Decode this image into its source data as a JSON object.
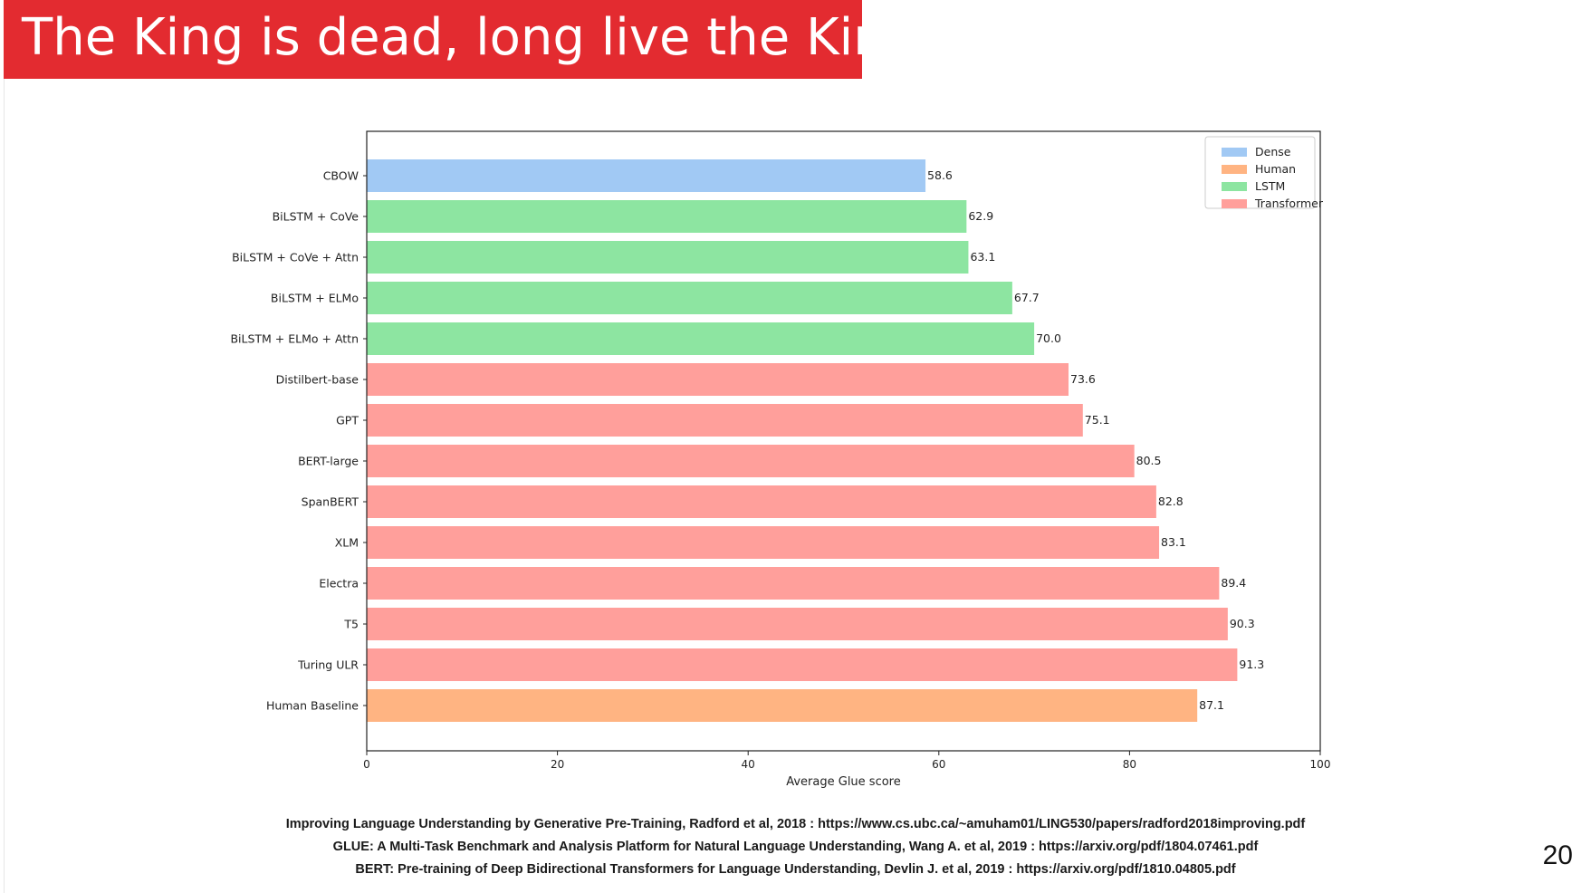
{
  "slide": {
    "title": "The King is dead, long live the King!",
    "page_number": "20",
    "references": [
      "Improving Language Understanding by Generative Pre-Training, Radford et al, 2018 : https://www.cs.ubc.ca/~amuham01/LING530/papers/radford2018improving.pdf",
      "GLUE: A Multi-Task Benchmark and Analysis Platform for Natural Language Understanding, Wang A. et al, 2019 : https://arxiv.org/pdf/1804.07461.pdf",
      "BERT: Pre-training of Deep Bidirectional Transformers for Language Understanding, Devlin J. et al, 2019 : https://arxiv.org/pdf/1810.04805.pdf"
    ],
    "colors": {
      "title_band": "#e32b30",
      "title_text": "#ffffff"
    }
  },
  "chart_data": {
    "type": "bar",
    "orientation": "horizontal",
    "title": "",
    "xlabel": "Average Glue score",
    "ylabel": "",
    "xlim": [
      0,
      100
    ],
    "xticks": [
      0,
      20,
      40,
      60,
      80,
      100
    ],
    "grid": false,
    "legend_position": "top-right",
    "legend": [
      {
        "name": "Dense",
        "color": "#a1c9f4"
      },
      {
        "name": "Human",
        "color": "#ffb482"
      },
      {
        "name": "LSTM",
        "color": "#8de5a1"
      },
      {
        "name": "Transformer",
        "color": "#ff9f9b"
      }
    ],
    "bars": [
      {
        "label": "CBOW",
        "value": 58.6,
        "value_label": "58.6",
        "group": "Dense"
      },
      {
        "label": "BiLSTM + CoVe",
        "value": 62.9,
        "value_label": "62.9",
        "group": "LSTM"
      },
      {
        "label": "BiLSTM + CoVe + Attn",
        "value": 63.1,
        "value_label": "63.1",
        "group": "LSTM"
      },
      {
        "label": "BiLSTM + ELMo",
        "value": 67.7,
        "value_label": "67.7",
        "group": "LSTM"
      },
      {
        "label": "BiLSTM + ELMo + Attn",
        "value": 70.0,
        "value_label": "70.0",
        "group": "LSTM"
      },
      {
        "label": "Distilbert-base",
        "value": 73.6,
        "value_label": "73.6",
        "group": "Transformer"
      },
      {
        "label": "GPT",
        "value": 75.1,
        "value_label": "75.1",
        "group": "Transformer"
      },
      {
        "label": "BERT-large",
        "value": 80.5,
        "value_label": "80.5",
        "group": "Transformer"
      },
      {
        "label": "SpanBERT",
        "value": 82.8,
        "value_label": "82.8",
        "group": "Transformer"
      },
      {
        "label": "XLM",
        "value": 83.1,
        "value_label": "83.1",
        "group": "Transformer"
      },
      {
        "label": "Electra",
        "value": 89.4,
        "value_label": "89.4",
        "group": "Transformer"
      },
      {
        "label": "T5",
        "value": 90.3,
        "value_label": "90.3",
        "group": "Transformer"
      },
      {
        "label": "Turing ULR",
        "value": 91.3,
        "value_label": "91.3",
        "group": "Transformer"
      },
      {
        "label": "Human Baseline",
        "value": 87.1,
        "value_label": "87.1",
        "group": "Human"
      }
    ]
  }
}
